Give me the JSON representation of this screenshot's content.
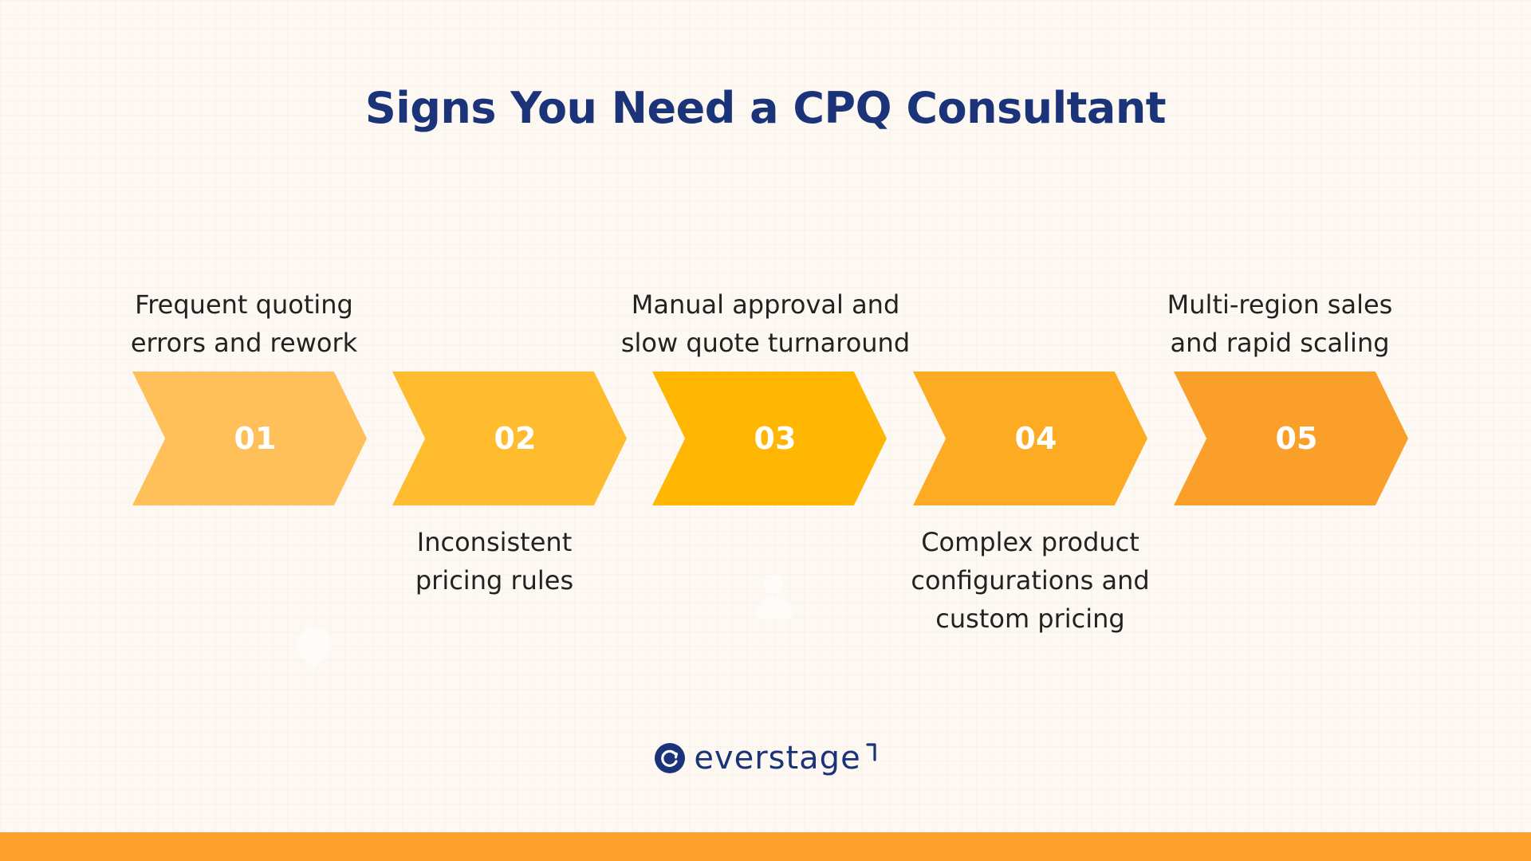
{
  "title": "Signs You Need a CPQ Consultant",
  "steps": [
    {
      "number": "01",
      "label": "Frequent quoting\nerrors and rework",
      "position": "top",
      "color": "#ffc05a"
    },
    {
      "number": "02",
      "label": "Inconsistent\npricing rules",
      "position": "bottom",
      "color": "#ffbc2e"
    },
    {
      "number": "03",
      "label": "Manual approval and\nslow quote turnaround",
      "position": "top",
      "color": "#ffb703"
    },
    {
      "number": "04",
      "label": "Complex product\nconfigurations and\ncustom pricing",
      "position": "bottom",
      "color": "#fdab22"
    },
    {
      "number": "05",
      "label": "Multi-region sales\nand rapid scaling",
      "position": "top",
      "color": "#fa9f2a"
    }
  ],
  "brand": {
    "name": "everstage",
    "primary_color": "#1b3479",
    "accent_color": "#fba02b"
  }
}
